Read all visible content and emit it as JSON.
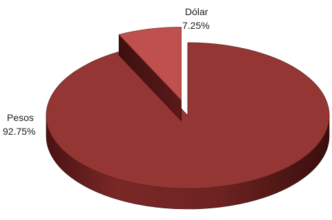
{
  "chart_data": {
    "type": "pie",
    "style": "3d-exploded",
    "slices": [
      {
        "label": "Pesos",
        "value": 92.75,
        "value_label": "92.75%",
        "color": "#943634"
      },
      {
        "label": "Dólar",
        "value": 7.25,
        "value_label": "7.25%",
        "color": "#C0504D"
      }
    ],
    "exploded_slice": "Dólar"
  }
}
